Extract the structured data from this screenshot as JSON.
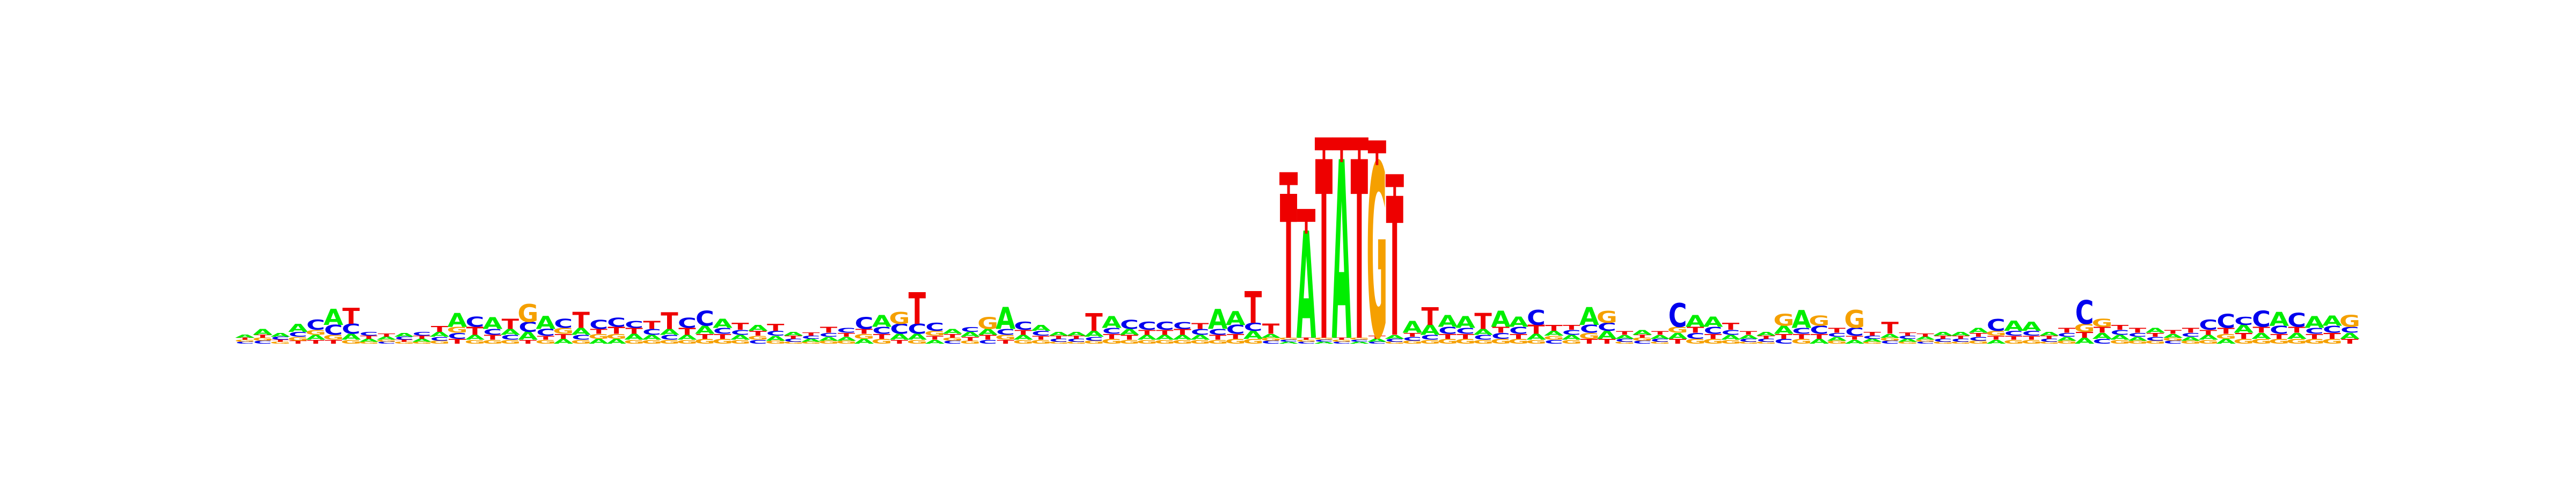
{
  "chart_data": {
    "type": "sequence-logo",
    "alphabet": [
      "A",
      "C",
      "G",
      "T"
    ],
    "colors": {
      "A": "#00ee00",
      "C": "#0000ee",
      "G": "#f5a000",
      "T": "#ee0000"
    },
    "ylim": [
      0,
      2
    ],
    "error_bar_color": "#ee0000",
    "positions": [
      {
        "A": 0.03,
        "C": 0.02,
        "G": 0.02,
        "T": 0.02
      },
      {
        "A": 0.06,
        "C": 0.03,
        "G": 0.03,
        "T": 0.03
      },
      {
        "A": 0.04,
        "C": 0.03,
        "G": 0.02,
        "T": 0.02
      },
      {
        "A": 0.08,
        "C": 0.05,
        "G": 0.04,
        "T": 0.03
      },
      {
        "A": 0.05,
        "C": 0.1,
        "G": 0.05,
        "T": 0.04
      },
      {
        "A": 0.16,
        "C": 0.1,
        "G": 0.05,
        "T": 0.04
      },
      {
        "A": 0.06,
        "C": 0.1,
        "G": 0.04,
        "T": 0.16
      },
      {
        "A": 0.03,
        "C": 0.04,
        "G": 0.02,
        "T": 0.03
      },
      {
        "A": 0.03,
        "C": 0.02,
        "G": 0.02,
        "T": 0.03
      },
      {
        "A": 0.04,
        "C": 0.03,
        "G": 0.02,
        "T": 0.02
      },
      {
        "A": 0.03,
        "C": 0.04,
        "G": 0.02,
        "T": 0.03
      },
      {
        "A": 0.05,
        "C": 0.04,
        "G": 0.03,
        "T": 0.06
      },
      {
        "A": 0.14,
        "C": 0.06,
        "G": 0.06,
        "T": 0.05
      },
      {
        "A": 0.05,
        "C": 0.1,
        "G": 0.04,
        "T": 0.08
      },
      {
        "A": 0.12,
        "C": 0.06,
        "G": 0.04,
        "T": 0.05
      },
      {
        "A": 0.06,
        "C": 0.05,
        "G": 0.04,
        "T": 0.1
      },
      {
        "A": 0.08,
        "C": 0.1,
        "G": 0.18,
        "T": 0.04
      },
      {
        "A": 0.13,
        "C": 0.07,
        "G": 0.04,
        "T": 0.04
      },
      {
        "A": 0.05,
        "C": 0.09,
        "G": 0.06,
        "T": 0.05
      },
      {
        "A": 0.07,
        "C": 0.05,
        "G": 0.04,
        "T": 0.16
      },
      {
        "A": 0.05,
        "C": 0.09,
        "G": 0.05,
        "T": 0.05
      },
      {
        "A": 0.05,
        "C": 0.09,
        "G": 0.05,
        "T": 0.07
      },
      {
        "A": 0.06,
        "C": 0.07,
        "G": 0.04,
        "T": 0.06
      },
      {
        "A": 0.05,
        "C": 0.06,
        "G": 0.04,
        "T": 0.08
      },
      {
        "A": 0.06,
        "C": 0.05,
        "G": 0.04,
        "T": 0.17
      },
      {
        "A": 0.05,
        "C": 0.1,
        "G": 0.04,
        "T": 0.07
      },
      {
        "A": 0.08,
        "C": 0.15,
        "G": 0.05,
        "T": 0.05
      },
      {
        "A": 0.09,
        "C": 0.06,
        "G": 0.05,
        "T": 0.05
      },
      {
        "A": 0.05,
        "C": 0.05,
        "G": 0.04,
        "T": 0.07
      },
      {
        "A": 0.06,
        "C": 0.04,
        "G": 0.04,
        "T": 0.05
      },
      {
        "A": 0.05,
        "C": 0.05,
        "G": 0.03,
        "T": 0.07
      },
      {
        "A": 0.04,
        "C": 0.03,
        "G": 0.02,
        "T": 0.03
      },
      {
        "A": 0.03,
        "C": 0.03,
        "G": 0.02,
        "T": 0.03
      },
      {
        "A": 0.04,
        "C": 0.04,
        "G": 0.03,
        "T": 0.06
      },
      {
        "A": 0.04,
        "C": 0.05,
        "G": 0.03,
        "T": 0.04
      },
      {
        "A": 0.05,
        "C": 0.12,
        "G": 0.05,
        "T": 0.05
      },
      {
        "A": 0.12,
        "C": 0.07,
        "G": 0.05,
        "T": 0.05
      },
      {
        "A": 0.06,
        "C": 0.1,
        "G": 0.12,
        "T": 0.04
      },
      {
        "A": 0.06,
        "C": 0.1,
        "G": 0.04,
        "T": 0.32
      },
      {
        "A": 0.04,
        "C": 0.08,
        "G": 0.05,
        "T": 0.04
      },
      {
        "A": 0.05,
        "C": 0.03,
        "G": 0.03,
        "T": 0.04
      },
      {
        "A": 0.05,
        "C": 0.05,
        "G": 0.03,
        "T": 0.04
      },
      {
        "A": 0.06,
        "C": 0.04,
        "G": 0.12,
        "T": 0.05
      },
      {
        "A": 0.22,
        "C": 0.06,
        "G": 0.05,
        "T": 0.04
      },
      {
        "A": 0.05,
        "C": 0.08,
        "G": 0.04,
        "T": 0.05
      },
      {
        "A": 0.06,
        "C": 0.05,
        "G": 0.04,
        "T": 0.04
      },
      {
        "A": 0.04,
        "C": 0.03,
        "G": 0.02,
        "T": 0.03
      },
      {
        "A": 0.04,
        "C": 0.03,
        "G": 0.02,
        "T": 0.03
      },
      {
        "A": 0.06,
        "C": 0.04,
        "G": 0.03,
        "T": 0.18
      },
      {
        "A": 0.12,
        "C": 0.06,
        "G": 0.05,
        "T": 0.05
      },
      {
        "A": 0.06,
        "C": 0.09,
        "G": 0.04,
        "T": 0.05
      },
      {
        "A": 0.05,
        "C": 0.08,
        "G": 0.04,
        "T": 0.05
      },
      {
        "A": 0.05,
        "C": 0.08,
        "G": 0.04,
        "T": 0.05
      },
      {
        "A": 0.05,
        "C": 0.07,
        "G": 0.04,
        "T": 0.06
      },
      {
        "A": 0.05,
        "C": 0.06,
        "G": 0.04,
        "T": 0.06
      },
      {
        "A": 0.2,
        "C": 0.06,
        "G": 0.04,
        "T": 0.05
      },
      {
        "A": 0.14,
        "C": 0.09,
        "G": 0.05,
        "T": 0.05
      },
      {
        "A": 0.08,
        "C": 0.08,
        "G": 0.05,
        "T": 0.32
      },
      {
        "A": 0.04,
        "C": 0.03,
        "G": 0.03,
        "T": 0.1
      },
      {
        "A": 0.02,
        "C": 0.02,
        "G": 0.02,
        "T": 1.45
      },
      {
        "A": 1.08,
        "C": 0.02,
        "G": 0.02,
        "T": 0.02
      },
      {
        "A": 0.02,
        "C": 0.02,
        "G": 0.02,
        "T": 1.8
      },
      {
        "A": 1.8,
        "C": 0.02,
        "G": 0.02,
        "T": 0.02
      },
      {
        "A": 0.02,
        "C": 0.02,
        "G": 0.02,
        "T": 1.8
      },
      {
        "A": 0.03,
        "C": 0.02,
        "G": 1.75,
        "T": 0.03
      },
      {
        "A": 0.04,
        "C": 0.03,
        "G": 0.02,
        "T": 1.4
      },
      {
        "A": 0.12,
        "C": 0.04,
        "G": 0.03,
        "T": 0.04
      },
      {
        "A": 0.1,
        "C": 0.05,
        "G": 0.04,
        "T": 0.18
      },
      {
        "A": 0.12,
        "C": 0.07,
        "G": 0.05,
        "T": 0.05
      },
      {
        "A": 0.12,
        "C": 0.06,
        "G": 0.05,
        "T": 0.05
      },
      {
        "A": 0.06,
        "C": 0.05,
        "G": 0.04,
        "T": 0.16
      },
      {
        "A": 0.16,
        "C": 0.06,
        "G": 0.05,
        "T": 0.06
      },
      {
        "A": 0.1,
        "C": 0.07,
        "G": 0.05,
        "T": 0.05
      },
      {
        "A": 0.06,
        "C": 0.15,
        "G": 0.04,
        "T": 0.09
      },
      {
        "A": 0.05,
        "C": 0.04,
        "G": 0.04,
        "T": 0.06
      },
      {
        "A": 0.05,
        "C": 0.05,
        "G": 0.04,
        "T": 0.05
      },
      {
        "A": 0.18,
        "C": 0.08,
        "G": 0.06,
        "T": 0.05
      },
      {
        "A": 0.08,
        "C": 0.08,
        "G": 0.12,
        "T": 0.05
      },
      {
        "A": 0.04,
        "C": 0.03,
        "G": 0.02,
        "T": 0.04
      },
      {
        "A": 0.05,
        "C": 0.03,
        "G": 0.03,
        "T": 0.03
      },
      {
        "A": 0.04,
        "C": 0.03,
        "G": 0.02,
        "T": 0.04
      },
      {
        "A": 0.06,
        "C": 0.24,
        "G": 0.06,
        "T": 0.05
      },
      {
        "A": 0.12,
        "C": 0.06,
        "G": 0.05,
        "T": 0.06
      },
      {
        "A": 0.1,
        "C": 0.07,
        "G": 0.05,
        "T": 0.05
      },
      {
        "A": 0.05,
        "C": 0.05,
        "G": 0.04,
        "T": 0.07
      },
      {
        "A": 0.04,
        "C": 0.03,
        "G": 0.02,
        "T": 0.04
      },
      {
        "A": 0.04,
        "C": 0.03,
        "G": 0.02,
        "T": 0.03
      },
      {
        "A": 0.08,
        "C": 0.05,
        "G": 0.12,
        "T": 0.05
      },
      {
        "A": 0.18,
        "C": 0.06,
        "G": 0.05,
        "T": 0.05
      },
      {
        "A": 0.05,
        "C": 0.08,
        "G": 0.1,
        "T": 0.05
      },
      {
        "A": 0.04,
        "C": 0.04,
        "G": 0.03,
        "T": 0.05
      },
      {
        "A": 0.04,
        "C": 0.08,
        "G": 0.18,
        "T": 0.04
      },
      {
        "A": 0.03,
        "C": 0.03,
        "G": 0.02,
        "T": 0.04
      },
      {
        "A": 0.04,
        "C": 0.03,
        "G": 0.03,
        "T": 0.12
      },
      {
        "A": 0.03,
        "C": 0.03,
        "G": 0.02,
        "T": 0.03
      },
      {
        "A": 0.03,
        "C": 0.02,
        "G": 0.02,
        "T": 0.03
      },
      {
        "A": 0.04,
        "C": 0.03,
        "G": 0.02,
        "T": 0.03
      },
      {
        "A": 0.04,
        "C": 0.03,
        "G": 0.02,
        "T": 0.03
      },
      {
        "A": 0.05,
        "C": 0.04,
        "G": 0.03,
        "T": 0.04
      },
      {
        "A": 0.04,
        "C": 0.12,
        "G": 0.05,
        "T": 0.04
      },
      {
        "A": 0.1,
        "C": 0.05,
        "G": 0.04,
        "T": 0.04
      },
      {
        "A": 0.09,
        "C": 0.05,
        "G": 0.04,
        "T": 0.04
      },
      {
        "A": 0.04,
        "C": 0.03,
        "G": 0.02,
        "T": 0.03
      },
      {
        "A": 0.04,
        "C": 0.04,
        "G": 0.03,
        "T": 0.05
      },
      {
        "A": 0.06,
        "C": 0.24,
        "G": 0.08,
        "T": 0.06
      },
      {
        "A": 0.06,
        "C": 0.05,
        "G": 0.08,
        "T": 0.06
      },
      {
        "A": 0.05,
        "C": 0.05,
        "G": 0.04,
        "T": 0.05
      },
      {
        "A": 0.04,
        "C": 0.04,
        "G": 0.03,
        "T": 0.05
      },
      {
        "A": 0.05,
        "C": 0.04,
        "G": 0.03,
        "T": 0.04
      },
      {
        "A": 0.04,
        "C": 0.03,
        "G": 0.03,
        "T": 0.04
      },
      {
        "A": 0.04,
        "C": 0.04,
        "G": 0.03,
        "T": 0.05
      },
      {
        "A": 0.05,
        "C": 0.1,
        "G": 0.04,
        "T": 0.05
      },
      {
        "A": 0.05,
        "C": 0.14,
        "G": 0.05,
        "T": 0.06
      },
      {
        "A": 0.08,
        "C": 0.08,
        "G": 0.05,
        "T": 0.06
      },
      {
        "A": 0.06,
        "C": 0.16,
        "G": 0.05,
        "T": 0.06
      },
      {
        "A": 0.14,
        "C": 0.08,
        "G": 0.05,
        "T": 0.05
      },
      {
        "A": 0.06,
        "C": 0.14,
        "G": 0.05,
        "T": 0.06
      },
      {
        "A": 0.12,
        "C": 0.06,
        "G": 0.05,
        "T": 0.05
      },
      {
        "A": 0.1,
        "C": 0.07,
        "G": 0.05,
        "T": 0.06
      },
      {
        "A": 0.06,
        "C": 0.06,
        "G": 0.12,
        "T": 0.05
      }
    ]
  }
}
